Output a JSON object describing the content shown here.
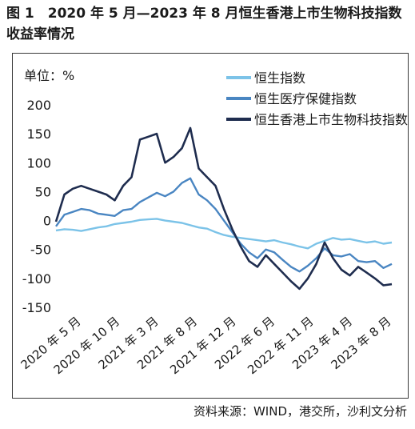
{
  "figure": {
    "title": "图 1　2020 年 5 月—2023 年 8 月恒生香港上市生物科技指数收益率情况",
    "source": "资料来源：WIND，港交所，沙利文分析"
  },
  "chart_data": {
    "type": "line",
    "title": "图 1　2020 年 5 月—2023 年 8 月恒生香港上市生物科技指数收益率情况",
    "ylabel": "单位：%",
    "xlabel": "",
    "ylim": [
      -150,
      200
    ],
    "yticks": [
      200,
      150,
      100,
      50,
      0,
      -50,
      -100,
      -150
    ],
    "xticks": [
      "2020 年 5 月",
      "2020 年 10 月",
      "2021 年 3 月",
      "2021 年 8 月",
      "2021 年 12 月",
      "2022 年 6 月",
      "2022 年 11 月",
      "2023 年 4 月",
      "2023 年 8 月"
    ],
    "grid": false,
    "legend_position": "top-right",
    "x": [
      0,
      1,
      2,
      3,
      4,
      5,
      6,
      7,
      8,
      9,
      10,
      11,
      12,
      13,
      14,
      15,
      16,
      17,
      18,
      19,
      20,
      21,
      22,
      23,
      24,
      25,
      26,
      27,
      28,
      29,
      30,
      31,
      32,
      33,
      34,
      35,
      36,
      37,
      38,
      39,
      40
    ],
    "series": [
      {
        "name": "恒生指数",
        "color": "#7cc3e8",
        "values": [
          -17,
          -15,
          -16,
          -18,
          -15,
          -12,
          -10,
          -6,
          -4,
          -2,
          1,
          2,
          3,
          0,
          -2,
          -4,
          -8,
          -12,
          -14,
          -20,
          -25,
          -28,
          -30,
          -32,
          -34,
          -36,
          -34,
          -38,
          -41,
          -45,
          -48,
          -40,
          -35,
          -30,
          -33,
          -32,
          -35,
          -38,
          -36,
          -40,
          -38
        ]
      },
      {
        "name": "恒生医疗保健指数",
        "color": "#4a86c2",
        "values": [
          -10,
          10,
          15,
          20,
          18,
          12,
          10,
          8,
          18,
          20,
          32,
          40,
          48,
          42,
          50,
          65,
          73,
          45,
          35,
          20,
          0,
          -20,
          -40,
          -55,
          -65,
          -50,
          -55,
          -68,
          -80,
          -88,
          -78,
          -65,
          -48,
          -60,
          -62,
          -58,
          -70,
          -72,
          -70,
          -82,
          -75
        ]
      },
      {
        "name": "恒生香港上市生物科技指数",
        "color": "#1f2d4f",
        "values": [
          -2,
          45,
          55,
          60,
          55,
          50,
          45,
          35,
          60,
          75,
          140,
          145,
          150,
          100,
          110,
          125,
          160,
          90,
          75,
          60,
          20,
          -15,
          -45,
          -70,
          -80,
          -60,
          -75,
          -90,
          -105,
          -118,
          -100,
          -75,
          -38,
          -65,
          -85,
          -95,
          -80,
          -90,
          -100,
          -112,
          -110
        ]
      }
    ]
  }
}
